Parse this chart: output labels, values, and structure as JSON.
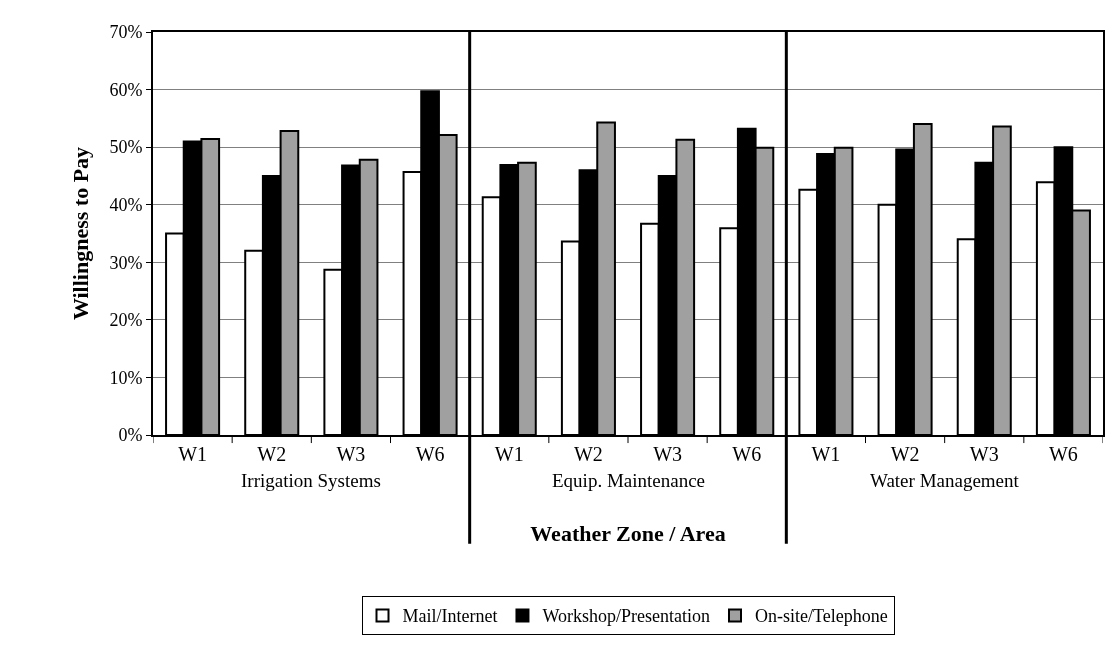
{
  "chart_data": {
    "type": "bar",
    "xlabel": "Weather Zone / Area",
    "ylabel": "Willingness to Pay",
    "categories": [
      "W1",
      "W2",
      "W3",
      "W6",
      "W1",
      "W2",
      "W3",
      "W6",
      "W1",
      "W2",
      "W3",
      "W6"
    ],
    "series": [
      {
        "name": "Mail/Internet",
        "color": "#ffffff",
        "values": [
          35,
          32,
          28.7,
          45.7,
          41.3,
          33.6,
          36.7,
          35.9,
          42.6,
          40,
          34,
          43.9
        ]
      },
      {
        "name": "Workshop/Presentation",
        "color": "#000000",
        "values": [
          51,
          45,
          46.8,
          59.7,
          46.9,
          46,
          45,
          53.2,
          48.8,
          49.6,
          47.3,
          50
        ]
      },
      {
        "name": "On-site/Telephone",
        "color": "#a0a0a0",
        "values": [
          51.4,
          52.8,
          47.8,
          52.1,
          47.3,
          54.3,
          51.3,
          49.9,
          49.9,
          54,
          53.6,
          39
        ]
      }
    ],
    "annotations": [
      "Irrigation Systems",
      "Equip. Maintenance",
      "Water Management"
    ],
    "ylim": [
      0,
      70
    ],
    "yticks": [
      {
        "value": 0,
        "label": "0%"
      },
      {
        "value": 10,
        "label": "10%"
      },
      {
        "value": 20,
        "label": "20%"
      },
      {
        "value": 30,
        "label": "30%"
      },
      {
        "value": 40,
        "label": "40%"
      },
      {
        "value": 50,
        "label": "50%"
      },
      {
        "value": 60,
        "label": "60%"
      },
      {
        "value": 70,
        "label": "70%"
      }
    ],
    "grid": "y",
    "legend": "bottom"
  }
}
